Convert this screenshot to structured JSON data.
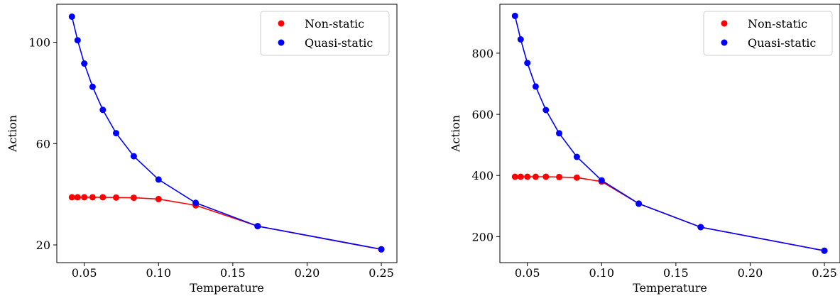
{
  "colors": {
    "non_static": "#ff0000",
    "quasi_static": "#0000ff"
  },
  "chart_data": [
    {
      "type": "line",
      "title": "",
      "xlabel": "Temperature",
      "ylabel": "Action",
      "xlim": [
        0.0315,
        0.2605
      ],
      "ylim": [
        13,
        115
      ],
      "xticks": [
        0.05,
        0.1,
        0.15,
        0.2,
        0.25
      ],
      "xtick_labels": [
        "0.05",
        "0.10",
        "0.15",
        "0.20",
        "0.25"
      ],
      "yticks": [
        20,
        60,
        100
      ],
      "ytick_labels": [
        "20",
        "60",
        "100"
      ],
      "grid": false,
      "legend": "top-right",
      "series": [
        {
          "name": "Non-static",
          "color": "#ff0000",
          "x": [
            0.0417,
            0.0455,
            0.05,
            0.0556,
            0.0625,
            0.0714,
            0.0833,
            0.1,
            0.125,
            0.1667,
            0.25
          ],
          "y": [
            38.8,
            38.8,
            38.8,
            38.8,
            38.8,
            38.7,
            38.6,
            38.1,
            35.6,
            27.4,
            18.2
          ]
        },
        {
          "name": "Quasi-static",
          "color": "#0000ff",
          "x": [
            0.0417,
            0.0455,
            0.05,
            0.0556,
            0.0625,
            0.0714,
            0.0833,
            0.1,
            0.125,
            0.1667,
            0.25
          ],
          "y": [
            110.1,
            100.8,
            91.6,
            82.4,
            73.3,
            64.1,
            55.0,
            45.8,
            36.6,
            27.4,
            18.3
          ]
        }
      ]
    },
    {
      "type": "line",
      "title": "",
      "xlabel": "Temperature",
      "ylabel": "Action",
      "xlim": [
        0.0315,
        0.2605
      ],
      "ylim": [
        115,
        960
      ],
      "xticks": [
        0.05,
        0.1,
        0.15,
        0.2,
        0.25
      ],
      "xtick_labels": [
        "0.05",
        "0.10",
        "0.15",
        "0.20",
        "0.25"
      ],
      "yticks": [
        200,
        400,
        600,
        800
      ],
      "ytick_labels": [
        "200",
        "400",
        "600",
        "800"
      ],
      "grid": false,
      "legend": "top-right",
      "series": [
        {
          "name": "Non-static",
          "color": "#ff0000",
          "x": [
            0.0417,
            0.0455,
            0.05,
            0.0556,
            0.0625,
            0.0714,
            0.0833,
            0.1,
            0.125,
            0.1667,
            0.25
          ],
          "y": [
            396,
            396,
            396,
            396,
            396,
            395,
            393,
            380,
            308,
            231,
            154
          ]
        },
        {
          "name": "Quasi-static",
          "color": "#0000ff",
          "x": [
            0.0417,
            0.0455,
            0.05,
            0.0556,
            0.0625,
            0.0714,
            0.0833,
            0.1,
            0.125,
            0.1667,
            0.25
          ],
          "y": [
            922,
            845,
            768,
            691,
            614,
            538,
            461,
            384,
            308,
            231,
            154
          ]
        }
      ]
    }
  ]
}
